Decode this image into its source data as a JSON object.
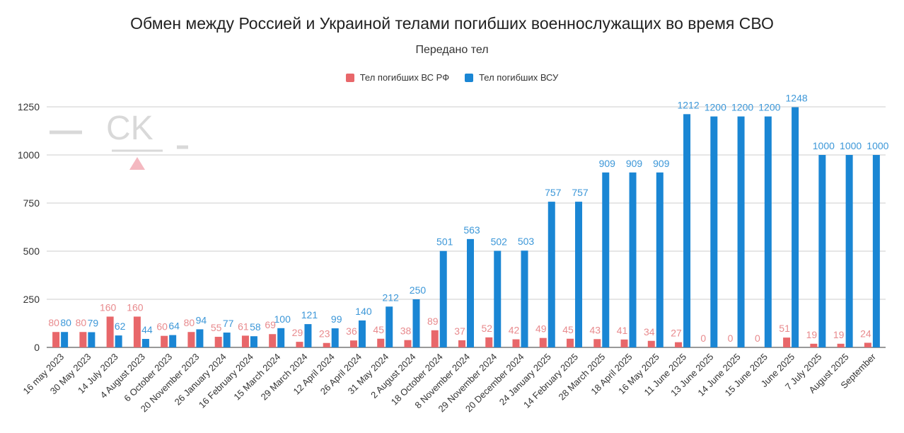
{
  "chart_data": {
    "type": "bar",
    "title": "Обмен между Россией и Украиной телами погибших военнослужащих во время СВО",
    "subtitle": "Передано тел",
    "legend_position": "top",
    "grid": true,
    "ylim": [
      0,
      1250
    ],
    "yticks": [
      "0",
      "250",
      "500",
      "750",
      "1000",
      "1250"
    ],
    "categories": [
      "16 may 2023",
      "30 May 2023",
      "14 July 2023",
      "4 August 2023",
      "6 October 2023",
      "20 November 2023",
      "26 January 2024",
      "16 February 2024",
      "15 March 2024",
      "29 March 2024",
      "12 April 2024",
      "26 April 2024",
      "31 May 2024",
      "2 August 2024",
      "18 October 2024",
      "8 November 2024",
      "29 November 2024",
      "20 December 2024",
      "24 January 2025",
      "14 February 2025",
      "28 March 2025",
      "18 April 2025",
      "16 May 2025",
      "11 June 2025",
      "13 June 2025",
      "14 June 2025",
      "15 June 2025",
      "June 2025",
      "7 July 2025",
      "August 2025",
      "September"
    ],
    "series": [
      {
        "name": "Тел погибших ВС  РФ",
        "color": "#e8676a",
        "values": [
          80,
          80,
          160,
          160,
          60,
          80,
          55,
          61,
          69,
          29,
          23,
          36,
          45,
          38,
          89,
          37,
          52,
          42,
          49,
          45,
          43,
          41,
          34,
          27,
          0,
          0,
          0,
          51,
          19,
          19,
          24
        ],
        "labels": [
          "80",
          "80",
          "160",
          "160",
          "60",
          "80",
          "55",
          "61",
          "69",
          "29",
          "23",
          "36",
          "45",
          "38",
          "89",
          "37",
          "52",
          "42",
          "49",
          "45",
          "43",
          "41",
          "34",
          "27",
          "0",
          "0",
          "0",
          "51",
          "19",
          "19",
          "24"
        ]
      },
      {
        "name": "Тел погибших ВСУ",
        "color": "#1a86d4",
        "values": [
          80,
          79,
          62,
          44,
          64,
          94,
          77,
          58,
          100,
          121,
          99,
          140,
          212,
          250,
          501,
          563,
          502,
          503,
          757,
          757,
          909,
          909,
          909,
          1212,
          1200,
          1200,
          1200,
          1248,
          1000,
          1000,
          1000
        ],
        "labels": [
          "80",
          "79",
          "62",
          "44",
          "64",
          "94",
          "77",
          "58",
          "100",
          "121",
          "99",
          "140",
          "212",
          "250",
          "501",
          "563",
          "502",
          "503",
          "757",
          "757",
          "909",
          "909",
          "909",
          "1212",
          "1200",
          "1200",
          "1200",
          "1248",
          "1000",
          "1000",
          "1000"
        ]
      }
    ]
  },
  "watermark": {
    "text": "CK"
  }
}
